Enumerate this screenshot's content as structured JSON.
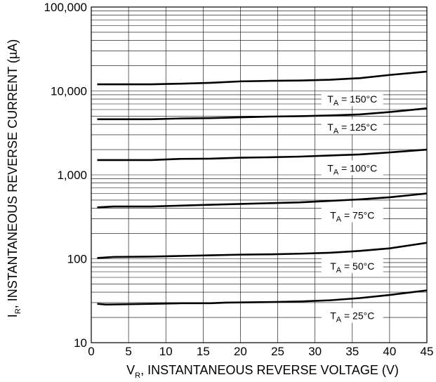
{
  "chart_data": {
    "type": "line",
    "xlabel": {
      "main": "V",
      "sub": "R",
      "rest": ", INSTANTANEOUS REVERSE VOLTAGE (V)"
    },
    "ylabel": {
      "main": "I",
      "sub": "R",
      "rest": ", INSTANTANEOUS REVERSE CURRENT (µA)"
    },
    "xlim": [
      0,
      45
    ],
    "ylim": [
      10,
      100000
    ],
    "yscale": "log",
    "grid": true,
    "x_ticks": [
      {
        "value": 0,
        "label": "0"
      },
      {
        "value": 5,
        "label": "5"
      },
      {
        "value": 10,
        "label": "10"
      },
      {
        "value": 15,
        "label": "15"
      },
      {
        "value": 20,
        "label": "20"
      },
      {
        "value": 25,
        "label": "25"
      },
      {
        "value": 30,
        "label": "30"
      },
      {
        "value": 35,
        "label": "35"
      },
      {
        "value": 40,
        "label": "40"
      },
      {
        "value": 45,
        "label": "45"
      }
    ],
    "y_ticks": [
      {
        "value": 10,
        "label": "10"
      },
      {
        "value": 100,
        "label": "100"
      },
      {
        "value": 1000,
        "label": "1,000"
      },
      {
        "value": 10000,
        "label": "10,000"
      },
      {
        "value": 100000,
        "label": "100,000"
      }
    ],
    "series": [
      {
        "name": "150°C",
        "label_prefix": "T",
        "label_sub": "A",
        "label_rest": " = 150°C",
        "label_x": 35,
        "label_y": 8000,
        "x": [
          0.8,
          3,
          8,
          12,
          16,
          20,
          24,
          28,
          32,
          36,
          40,
          45
        ],
        "y": [
          12000,
          12000,
          12000,
          12200,
          12500,
          13000,
          13200,
          13300,
          13600,
          14200,
          15500,
          17000
        ]
      },
      {
        "name": "125°C",
        "label_prefix": "T",
        "label_sub": "A",
        "label_rest": " = 125°C",
        "label_x": 35,
        "label_y": 3700,
        "x": [
          0.8,
          3,
          8,
          12,
          16,
          20,
          24,
          28,
          32,
          36,
          40,
          45
        ],
        "y": [
          4600,
          4600,
          4600,
          4700,
          4750,
          4850,
          4950,
          5000,
          5100,
          5250,
          5600,
          6200
        ]
      },
      {
        "name": "100°C",
        "label_prefix": "T",
        "label_sub": "A",
        "label_rest": " = 100°C",
        "label_x": 35,
        "label_y": 1200,
        "x": [
          0.8,
          3,
          8,
          12,
          16,
          20,
          24,
          28,
          32,
          36,
          40,
          45
        ],
        "y": [
          1500,
          1500,
          1500,
          1550,
          1560,
          1600,
          1620,
          1650,
          1700,
          1750,
          1850,
          2000
        ]
      },
      {
        "name": "75°C",
        "label_prefix": "T",
        "label_sub": "A",
        "label_rest": " = 75°C",
        "label_x": 35,
        "label_y": 330,
        "x": [
          0.8,
          3,
          8,
          12,
          16,
          20,
          24,
          28,
          32,
          36,
          40,
          45
        ],
        "y": [
          410,
          420,
          420,
          430,
          440,
          450,
          460,
          470,
          490,
          510,
          540,
          600
        ]
      },
      {
        "name": "50°C",
        "label_prefix": "T",
        "label_sub": "A",
        "label_rest": " = 50°C",
        "label_x": 35,
        "label_y": 82,
        "x": [
          0.8,
          3,
          8,
          12,
          16,
          20,
          24,
          28,
          32,
          36,
          40,
          45
        ],
        "y": [
          102,
          105,
          106,
          108,
          110,
          112,
          113,
          115,
          118,
          124,
          133,
          155
        ]
      },
      {
        "name": "25°C",
        "label_prefix": "T",
        "label_sub": "A",
        "label_rest": " = 25°C",
        "label_x": 35,
        "label_y": 21,
        "x": [
          0.8,
          2,
          8,
          12,
          16,
          18,
          24,
          28,
          32,
          36,
          40,
          45
        ],
        "y": [
          29,
          28.5,
          29,
          29.5,
          29.5,
          30,
          30.5,
          31,
          32,
          34,
          37,
          42
        ]
      }
    ]
  }
}
